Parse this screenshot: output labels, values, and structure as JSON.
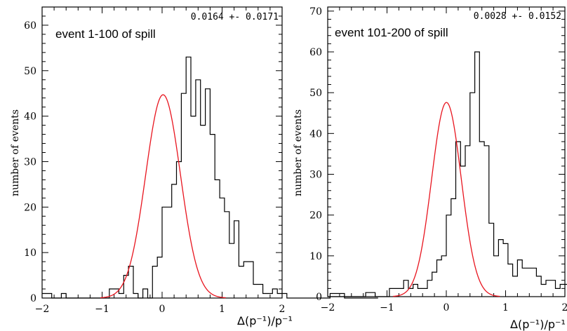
{
  "chart_data": [
    {
      "type": "histogram",
      "annotation": "event 1-100 of spill",
      "fit_result": "0.0164 +- 0.0171",
      "xlabel": "Δ(p⁻¹)/p⁻¹",
      "ylabel": "number of events",
      "xlim": [
        -2,
        2
      ],
      "ylim": [
        0,
        64
      ],
      "xticks": [
        -2,
        -1,
        0,
        1,
        2
      ],
      "yticks": [
        0,
        10,
        20,
        30,
        40,
        50,
        60
      ],
      "bin_width": 0.08,
      "bin_edges_start": -2.0,
      "counts": [
        1,
        1,
        0,
        0,
        1,
        0,
        0,
        0,
        0,
        0,
        0,
        0,
        0,
        0,
        2,
        2,
        1,
        5,
        7,
        1,
        0,
        2,
        0,
        7,
        9,
        20,
        20,
        25,
        30,
        45,
        53,
        40,
        48,
        38,
        46,
        36,
        26,
        22,
        19,
        12,
        17,
        7,
        8,
        8,
        3,
        3,
        1,
        1,
        2,
        1,
        1,
        0,
        0,
        0,
        0,
        0,
        0,
        0,
        0,
        0,
        1,
        1,
        1,
        0,
        0,
        0,
        0,
        0,
        0,
        0
      ],
      "series": [
        {
          "name": "histogram",
          "color": "#000000"
        },
        {
          "name": "gaussian fit",
          "color": "#e8141e",
          "mean": 0.0164,
          "amplitude": 44.7,
          "sigma": 0.29
        }
      ]
    },
    {
      "type": "histogram",
      "annotation": "event 101-200 of spill",
      "fit_result": "0.0028 +- 0.0152",
      "xlabel": "Δ(p⁻¹)/p⁻¹",
      "ylabel": "number of events",
      "xlim": [
        -2,
        2
      ],
      "ylim": [
        0,
        71
      ],
      "xticks": [
        -2,
        -1,
        0,
        1,
        2
      ],
      "yticks": [
        0,
        10,
        20,
        30,
        40,
        50,
        60,
        70
      ],
      "bin_width": 0.08,
      "bin_edges_start": -2.0,
      "counts": [
        0,
        0,
        0,
        0,
        0,
        0,
        0,
        0,
        1,
        1,
        0,
        0,
        0,
        2,
        2,
        2,
        4,
        2,
        3,
        2,
        2,
        4,
        6,
        9,
        10,
        20,
        24,
        38,
        32,
        37,
        50,
        60,
        38,
        37,
        18,
        10,
        14,
        13,
        8,
        5,
        9,
        7,
        7,
        7,
        5,
        3,
        4,
        4,
        2,
        3,
        3,
        0,
        0,
        0,
        0,
        1,
        1,
        0,
        0,
        1,
        1,
        1,
        0,
        0,
        0,
        0,
        0,
        0,
        0,
        0
      ],
      "series": [
        {
          "name": "histogram",
          "color": "#000000"
        },
        {
          "name": "gaussian fit",
          "color": "#e8141e",
          "mean": 0.0028,
          "amplitude": 47.6,
          "sigma": 0.25
        }
      ]
    }
  ]
}
